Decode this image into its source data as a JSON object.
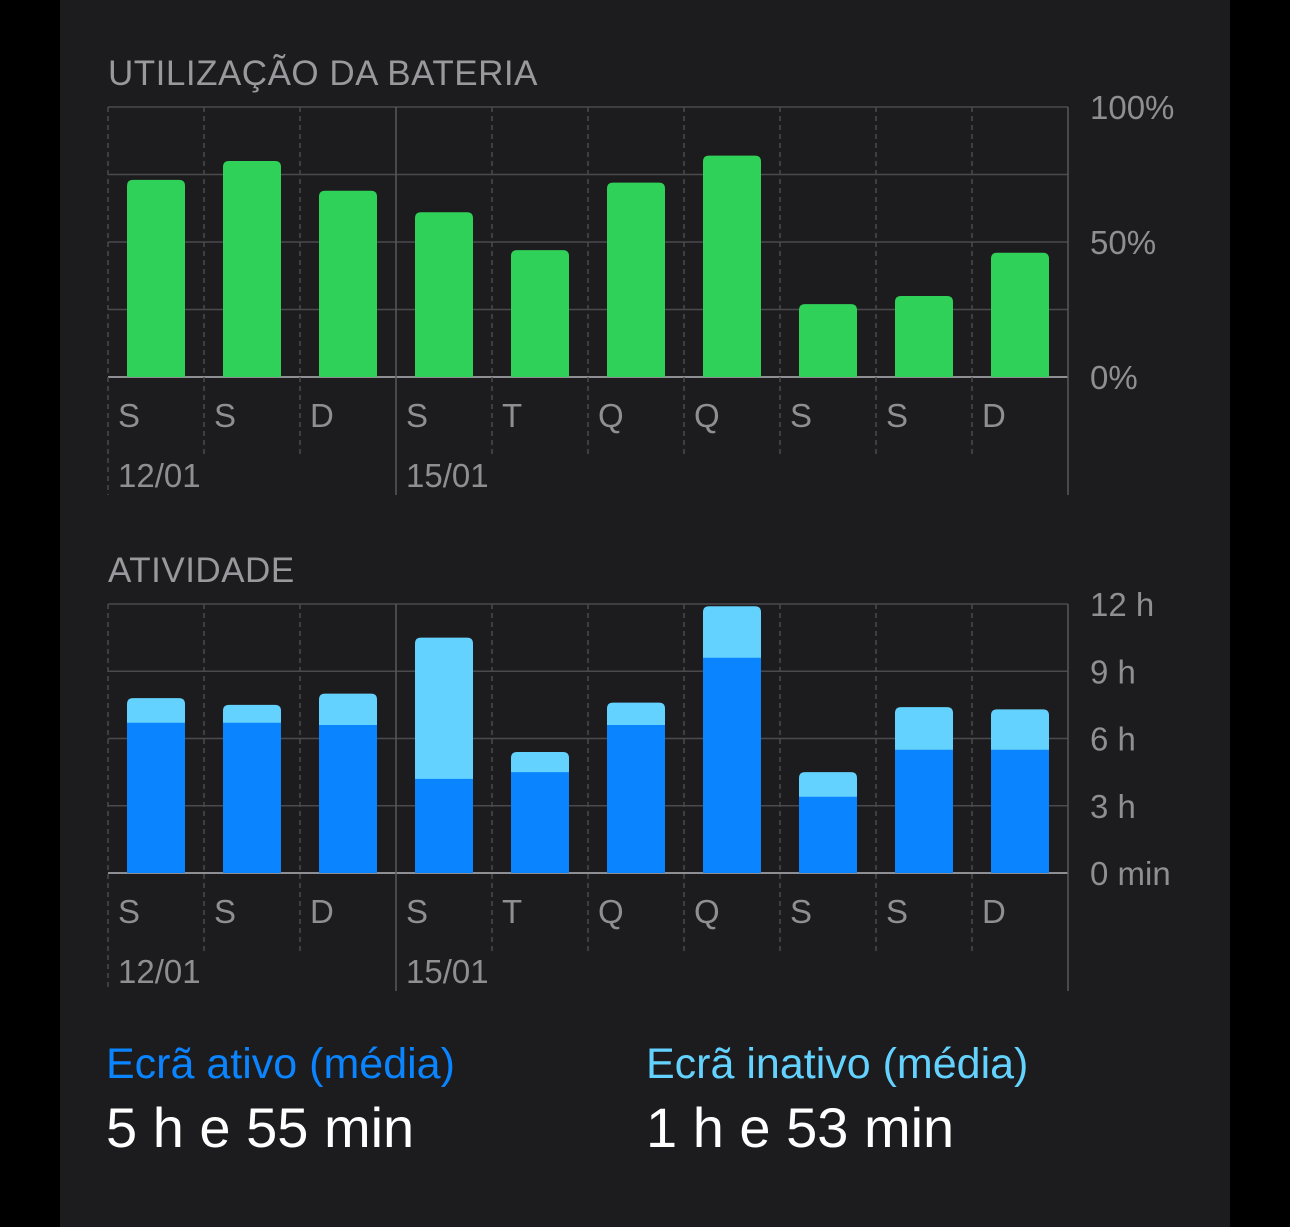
{
  "colors": {
    "battery": "#30d158",
    "active": "#0a84ff",
    "inactive": "#64d2ff",
    "active_label": "#0a84ff",
    "inactive_label": "#64d2ff"
  },
  "chart_data": [
    {
      "type": "bar",
      "title": "UTILIZAÇÃO DA BATERIA",
      "categories": [
        "S",
        "S",
        "D",
        "S",
        "T",
        "Q",
        "Q",
        "S",
        "S",
        "D"
      ],
      "date_labels": [
        {
          "index": 0,
          "label": "12/01"
        },
        {
          "index": 3,
          "label": "15/01"
        }
      ],
      "y_ticks": [
        "100%",
        "50%",
        "0%"
      ],
      "ylim": [
        0,
        100
      ],
      "unit": "%",
      "values": [
        73,
        80,
        69,
        61,
        47,
        72,
        82,
        27,
        30,
        46
      ],
      "grid": true
    },
    {
      "type": "bar",
      "stacked": true,
      "title": "ATIVIDADE",
      "categories": [
        "S",
        "S",
        "D",
        "S",
        "T",
        "Q",
        "Q",
        "S",
        "S",
        "D"
      ],
      "date_labels": [
        {
          "index": 0,
          "label": "12/01"
        },
        {
          "index": 3,
          "label": "15/01"
        }
      ],
      "y_ticks": [
        "12 h",
        "9 h",
        "6 h",
        "3 h",
        "0 min"
      ],
      "ylim": [
        0,
        12
      ],
      "unit": "h",
      "series": [
        {
          "name": "Ecrã ativo",
          "values": [
            6.7,
            6.7,
            6.6,
            4.2,
            4.5,
            6.6,
            9.6,
            3.4,
            5.5,
            5.5
          ]
        },
        {
          "name": "Ecrã inativo",
          "values": [
            1.1,
            0.8,
            1.4,
            6.3,
            0.9,
            1.0,
            2.3,
            1.1,
            1.9,
            1.8
          ]
        }
      ],
      "grid": true
    }
  ],
  "stats": {
    "active_label": "Ecrã ativo (média)",
    "active_value": "5 h e 55 min",
    "inactive_label": "Ecrã inativo (média)",
    "inactive_value": "1 h e 53 min"
  }
}
